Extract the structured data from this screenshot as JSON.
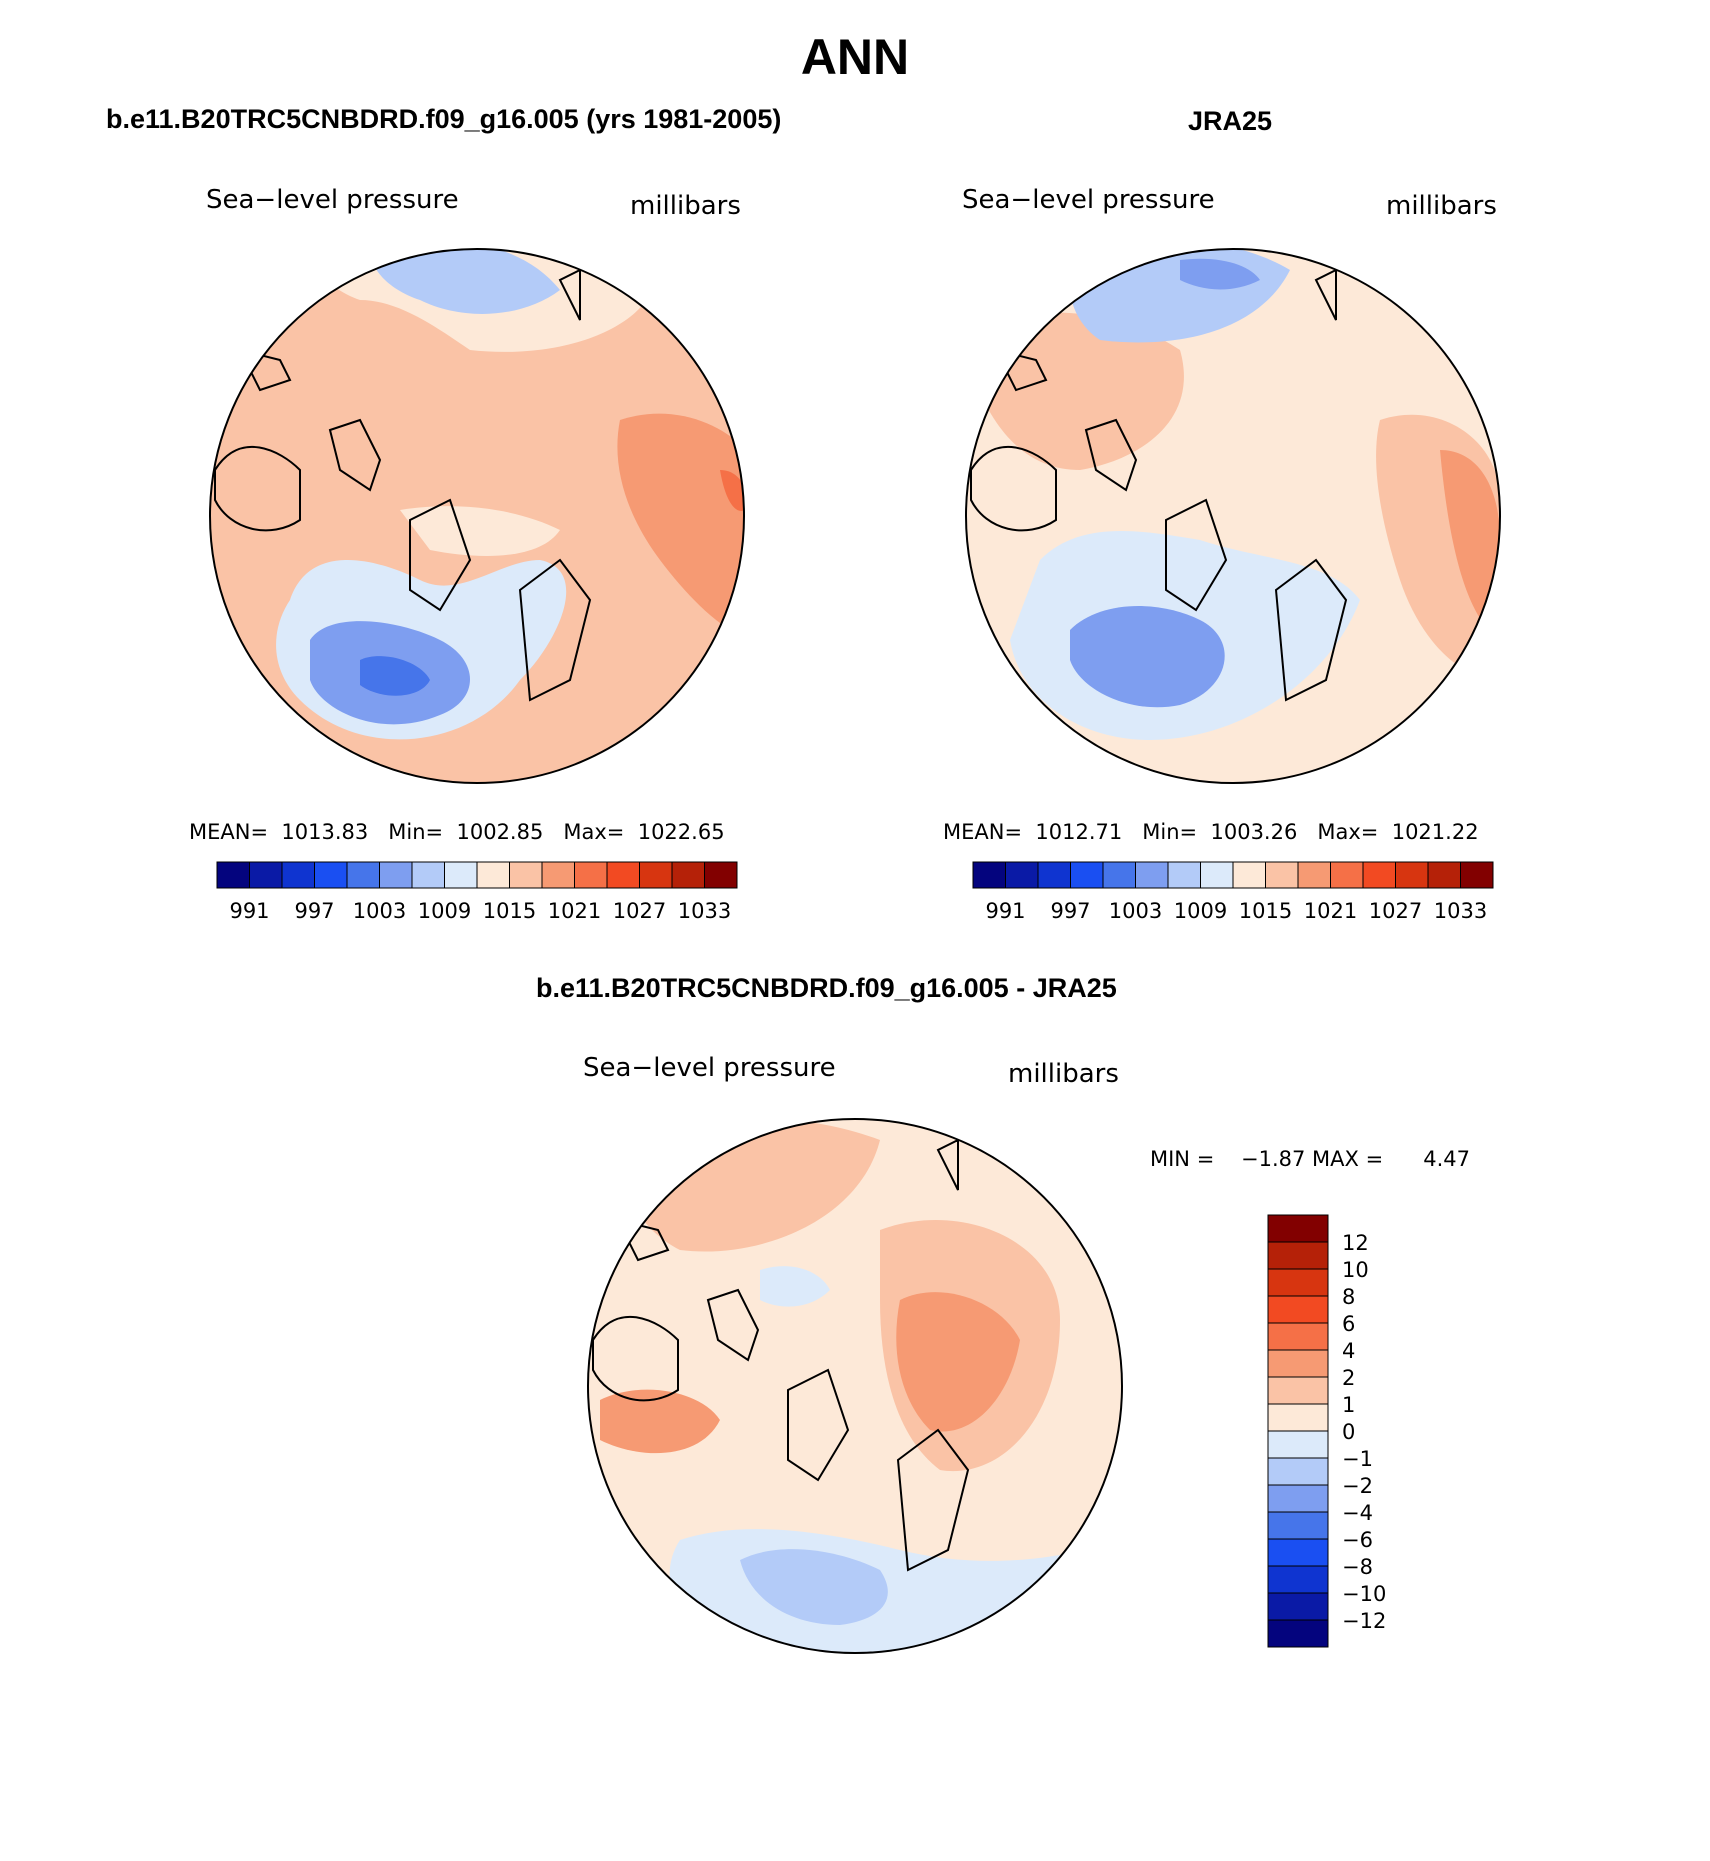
{
  "page": {
    "title": "ANN"
  },
  "colors": {
    "scale16": [
      "#04047e",
      "#0a1aa6",
      "#0f34d0",
      "#1a4ff2",
      "#4675ea",
      "#7e9ef0",
      "#b3cbf8",
      "#dceafa",
      "#fde9d8",
      "#fac3a6",
      "#f69a73",
      "#f57047",
      "#f24a22",
      "#d73510",
      "#b52108",
      "#820000"
    ],
    "diff": [
      "#04047e",
      "#0a1aa6",
      "#0f34d0",
      "#1a4ff2",
      "#4675ea",
      "#7e9ef0",
      "#b3cbf8",
      "#dceafa",
      "#fde9d8",
      "#fac3a6",
      "#f69a73",
      "#f57047",
      "#f24a22",
      "#d73510",
      "#b52108",
      "#820000"
    ]
  },
  "panels": [
    {
      "title": "b.e11.B20TRC5CNBDRD.f09_g16.005 (yrs 1981-2005)",
      "field_label": "Sea−level pressure",
      "units_label": "millibars",
      "stats": "MEAN=  1013.83   Min=  1002.85   Max=  1022.65"
    },
    {
      "title": "JRA25",
      "field_label": "Sea−level pressure",
      "units_label": "millibars",
      "stats": "MEAN=  1012.71   Min=  1003.26   Max=  1021.22"
    },
    {
      "title": "b.e11.B20TRC5CNBDRD.f09_g16.005 - JRA25",
      "field_label": "Sea−level pressure",
      "units_label": "millibars",
      "stats": "MIN =    −1.87 MAX =      4.47"
    }
  ],
  "colorbar_top": {
    "tick_labels": [
      "991",
      "997",
      "1003",
      "1009",
      "1015",
      "1021",
      "1027",
      "1033"
    ]
  },
  "colorbar_diff": {
    "tick_labels": [
      "12",
      "10",
      "8",
      "6",
      "4",
      "2",
      "1",
      "0",
      "−1",
      "−2",
      "−4",
      "−6",
      "−8",
      "−10",
      "−12"
    ]
  }
}
